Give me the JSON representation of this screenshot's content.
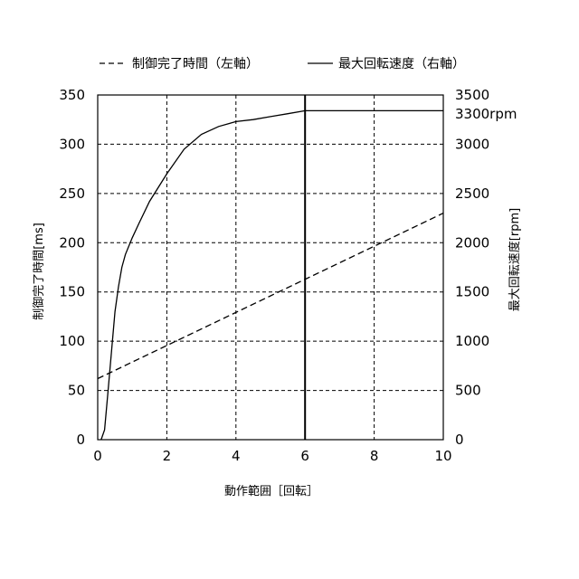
{
  "chart_data": {
    "type": "line",
    "title": "",
    "xlabel": "動作範囲［回転］",
    "ylabel_left": "制御完了時間[ms]",
    "ylabel_right": "最大回転速度[rpm]",
    "xlim": [
      0,
      10
    ],
    "ylim_left": [
      0,
      350
    ],
    "ylim_right": [
      0,
      3500
    ],
    "x_ticks": [
      0,
      2,
      4,
      6,
      8,
      10
    ],
    "y_ticks_left": [
      0,
      50,
      100,
      150,
      200,
      250,
      300,
      350
    ],
    "y_ticks_right": [
      0,
      500,
      1000,
      1500,
      2000,
      2500,
      3000,
      3500
    ],
    "grid": true,
    "legend_position": "top",
    "marker_line_x": 6,
    "annotation": "3300rpm",
    "series": [
      {
        "name": "制御完了時間（左軸）",
        "axis": "left",
        "style": "dashed",
        "x": [
          0,
          10
        ],
        "y": [
          62,
          230
        ]
      },
      {
        "name": "最大回転速度（右軸）",
        "axis": "right",
        "style": "solid",
        "x": [
          0.1,
          0.2,
          0.3,
          0.4,
          0.5,
          0.6,
          0.7,
          0.8,
          1.0,
          1.2,
          1.5,
          2.0,
          2.5,
          3.0,
          3.5,
          4.0,
          4.5,
          5.0,
          5.5,
          6.0,
          10.0
        ],
        "y": [
          0,
          100,
          500,
          900,
          1300,
          1550,
          1750,
          1880,
          2050,
          2200,
          2420,
          2700,
          2950,
          3100,
          3180,
          3230,
          3250,
          3280,
          3310,
          3340,
          3340
        ]
      }
    ]
  }
}
